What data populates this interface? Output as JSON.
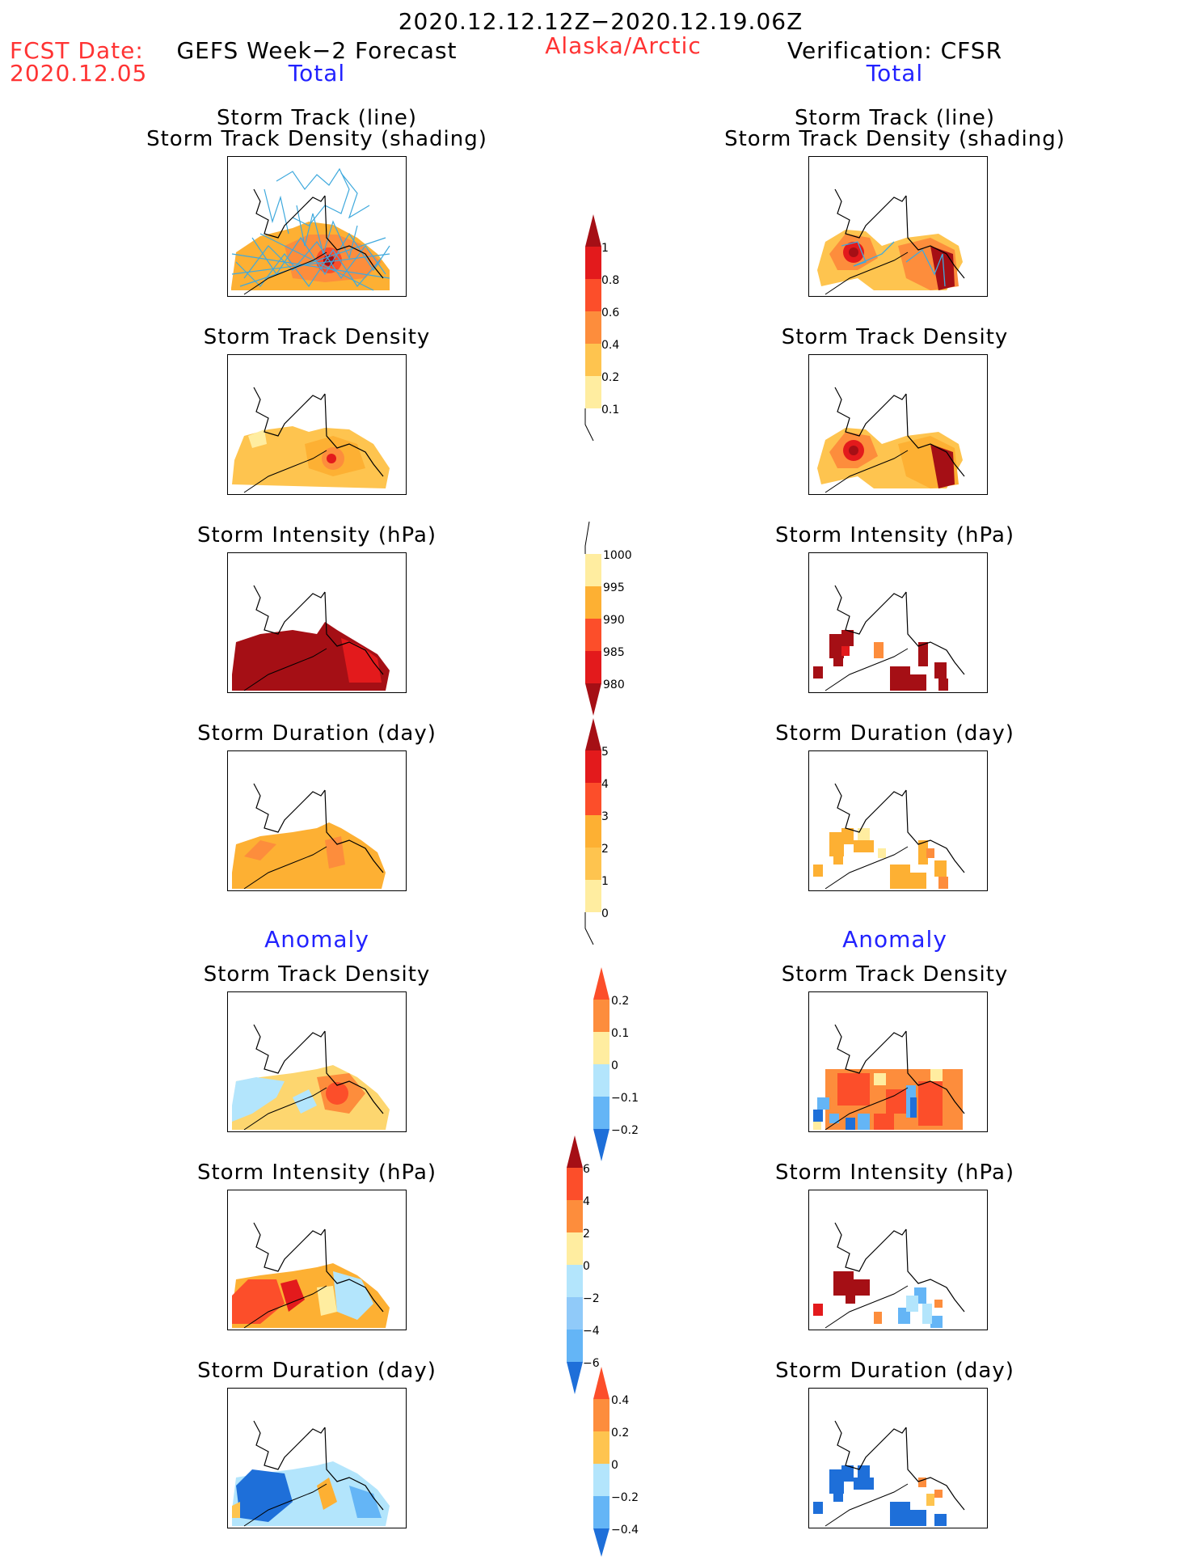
{
  "header": {
    "period": "2020.12.12.12Z−2020.12.19.06Z",
    "fcst_label": "FCST Date:",
    "fcst_date": "2020.12.05",
    "left_title": "GEFS Week−2 Forecast",
    "region": "Alaska/Arctic",
    "right_title": "Verification: CFSR",
    "left_total": "Total",
    "right_total": "Total",
    "left_anomaly": "Anomaly",
    "right_anomaly": "Anomaly"
  },
  "panels": {
    "track_line": "Storm Track (line)",
    "track_density_shading": "Storm Track Density (shading)",
    "track_density": "Storm Track Density",
    "intensity": "Storm Intensity (hPa)",
    "duration": "Storm Duration (day)"
  },
  "colorbars": {
    "density": [
      "1",
      "0.8",
      "0.6",
      "0.4",
      "0.2",
      "0.1"
    ],
    "intensity": [
      "1000",
      "995",
      "990",
      "985",
      "980"
    ],
    "duration": [
      "5",
      "4",
      "3",
      "2",
      "1",
      "0"
    ],
    "density_anom": [
      "0.2",
      "0.1",
      "0",
      "−0.1",
      "−0.2"
    ],
    "intensity_anom": [
      "6",
      "4",
      "2",
      "0",
      "−2",
      "−4",
      "−6"
    ],
    "duration_anom": [
      "0.4",
      "0.2",
      "0",
      "−0.2",
      "−0.4"
    ]
  },
  "colors": {
    "title_red": "#ff3333",
    "title_blue": "#2222ff",
    "track_line": "#3fa9dd",
    "dark_red": "#a50f15",
    "red": "#e31a1c",
    "orange_red": "#fc4e2a",
    "orange": "#fd8d3c",
    "amber": "#fdb033",
    "light_orange": "#fec44f",
    "pale_yellow": "#ffeda0",
    "light_blue": "#b3e5fc",
    "mid_blue": "#64b5f6",
    "blue": "#1e6fd9"
  }
}
